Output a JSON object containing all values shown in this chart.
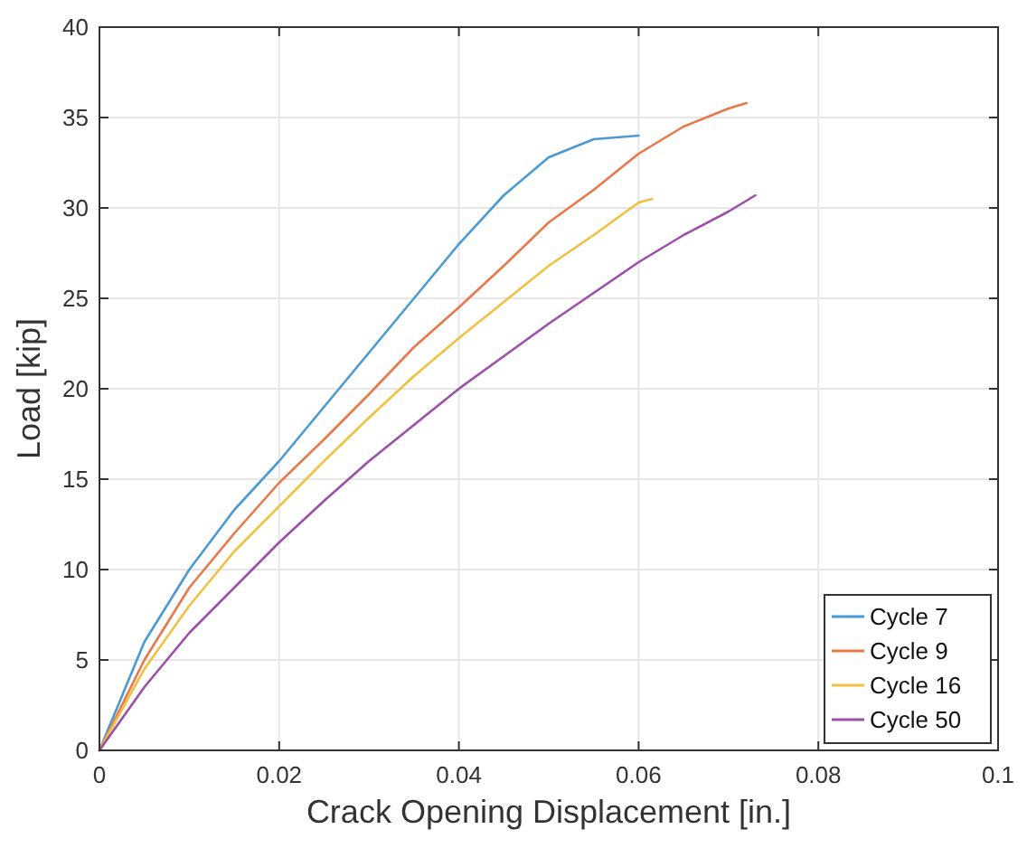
{
  "chart_data": {
    "type": "line",
    "xlabel": "Crack Opening Displacement [in.]",
    "ylabel": "Load [kip]",
    "xlim": [
      0,
      0.1
    ],
    "ylim": [
      0,
      40
    ],
    "xticks": [
      0,
      0.02,
      0.04,
      0.06,
      0.08,
      0.1
    ],
    "yticks": [
      0,
      5,
      10,
      15,
      20,
      25,
      30,
      35,
      40
    ],
    "grid": true,
    "legend": "bottom right",
    "line_style": "solid",
    "marker": "none",
    "series": [
      {
        "name": "Cycle 7",
        "color": "#4a9ad6",
        "x": [
          0,
          0.005,
          0.01,
          0.015,
          0.02,
          0.025,
          0.03,
          0.035,
          0.04,
          0.045,
          0.05,
          0.055,
          0.06
        ],
        "values": [
          0,
          6,
          10,
          13.3,
          16,
          19,
          22,
          25,
          28,
          30.7,
          32.8,
          33.8,
          34
        ]
      },
      {
        "name": "Cycle 9",
        "color": "#e8774a",
        "x": [
          0,
          0.005,
          0.01,
          0.015,
          0.02,
          0.025,
          0.03,
          0.035,
          0.04,
          0.045,
          0.05,
          0.055,
          0.06,
          0.065,
          0.07,
          0.072
        ],
        "values": [
          0,
          5,
          9,
          12,
          14.8,
          17.2,
          19.7,
          22.3,
          24.5,
          26.8,
          29.2,
          31,
          33,
          34.5,
          35.5,
          35.8
        ]
      },
      {
        "name": "Cycle 16",
        "color": "#f2c040",
        "x": [
          0,
          0.005,
          0.01,
          0.015,
          0.02,
          0.025,
          0.03,
          0.035,
          0.04,
          0.045,
          0.05,
          0.055,
          0.06,
          0.0615
        ],
        "values": [
          0,
          4.5,
          8,
          11,
          13.5,
          16,
          18.4,
          20.7,
          22.8,
          24.8,
          26.8,
          28.5,
          30.3,
          30.5
        ]
      },
      {
        "name": "Cycle 50",
        "color": "#9b4fa8",
        "x": [
          0,
          0.005,
          0.01,
          0.015,
          0.02,
          0.025,
          0.03,
          0.035,
          0.04,
          0.045,
          0.05,
          0.055,
          0.06,
          0.065,
          0.07,
          0.073
        ],
        "values": [
          0,
          3.5,
          6.5,
          9,
          11.5,
          13.8,
          16,
          18,
          20,
          21.8,
          23.6,
          25.3,
          27,
          28.5,
          29.8,
          30.7
        ]
      }
    ]
  }
}
